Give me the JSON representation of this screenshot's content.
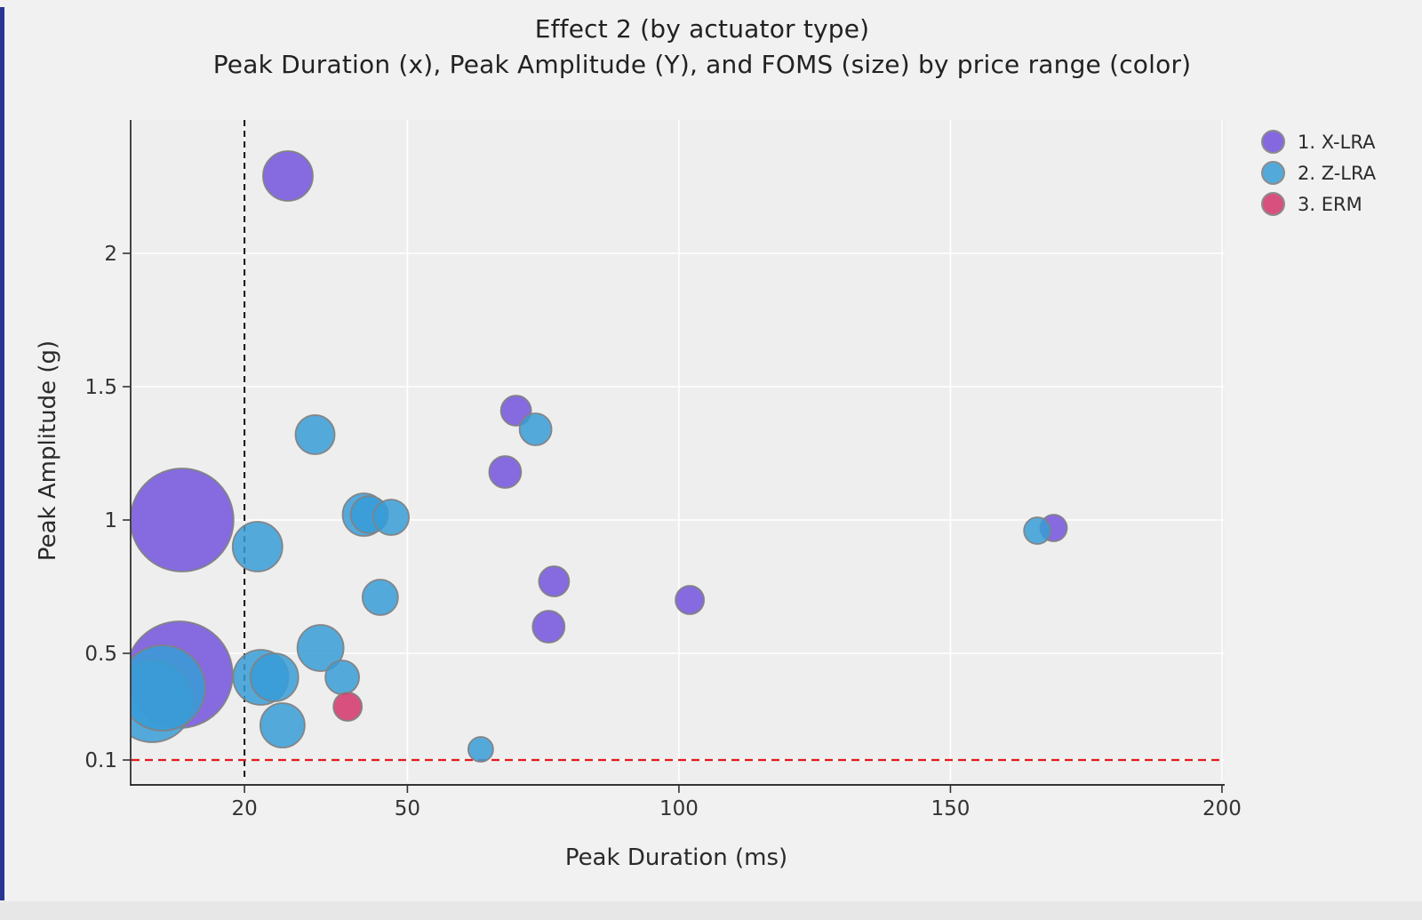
{
  "title": "Effect 2 (by actuator type)",
  "subtitle": "Peak Duration (x), Peak Amplitude (Y), and FOMS (size) by price range (color)",
  "chart_data": {
    "type": "scatter",
    "subtype": "bubble",
    "title": "Effect 2 (by actuator type)",
    "subtitle": "Peak Duration (x), Peak Amplitude (Y), and FOMS (size) by price range (color)",
    "xlabel": "Peak Duration (ms)",
    "ylabel": "Peak Amplitude (g)",
    "xlim": [
      -0.8,
      200.5
    ],
    "ylim": [
      0.02,
      2.5
    ],
    "x_ticks": [
      20,
      50,
      100,
      150,
      200
    ],
    "y_ticks": [
      0.1,
      0.5,
      1,
      1.5,
      2
    ],
    "grid": true,
    "gridline_color": "#ffffff",
    "plot_bg": "#eeeeef",
    "reference_lines": {
      "vline": {
        "x": 20,
        "color": "#111111",
        "dash": "black-dashed"
      },
      "hline": {
        "y": 0.1,
        "color": "#e41a1c",
        "dash": "red-dashed"
      }
    },
    "marker_opacity": 0.85,
    "marker_stroke": "#828282",
    "legend_position": "top-right",
    "legend": [
      {
        "label": "1. X-LRA",
        "color": "#8568e0"
      },
      {
        "label": "2. Z-LRA",
        "color": "#54a9db"
      },
      {
        "label": "3. ERM",
        "color": "#d8517e"
      }
    ],
    "series": [
      {
        "name": "1. X-LRA",
        "fill": "#7253dc",
        "points": [
          {
            "x": 28,
            "y": 2.29,
            "r": 28
          },
          {
            "x": 8.5,
            "y": 1.0,
            "r": 58
          },
          {
            "x": 70,
            "y": 1.41,
            "r": 17
          },
          {
            "x": 68,
            "y": 1.18,
            "r": 18
          },
          {
            "x": 8,
            "y": 0.42,
            "r": 60
          },
          {
            "x": 77,
            "y": 0.77,
            "r": 17
          },
          {
            "x": 76,
            "y": 0.6,
            "r": 18
          },
          {
            "x": 102,
            "y": 0.7,
            "r": 16
          },
          {
            "x": 169,
            "y": 0.97,
            "r": 15
          }
        ]
      },
      {
        "name": "2. Z-LRA",
        "fill": "#389cd7",
        "points": [
          {
            "x": 33,
            "y": 1.32,
            "r": 22
          },
          {
            "x": 73.6,
            "y": 1.34,
            "r": 18
          },
          {
            "x": 22.4,
            "y": 0.9,
            "r": 28
          },
          {
            "x": 42,
            "y": 1.02,
            "r": 24
          },
          {
            "x": 43,
            "y": 1.02,
            "r": 21
          },
          {
            "x": 47,
            "y": 1.01,
            "r": 20
          },
          {
            "x": 45,
            "y": 0.71,
            "r": 20
          },
          {
            "x": 34,
            "y": 0.52,
            "r": 26
          },
          {
            "x": 23,
            "y": 0.41,
            "r": 31
          },
          {
            "x": 25.5,
            "y": 0.41,
            "r": 27
          },
          {
            "x": 38,
            "y": 0.41,
            "r": 19
          },
          {
            "x": 27,
            "y": 0.23,
            "r": 25
          },
          {
            "x": 3,
            "y": 0.32,
            "r": 46
          },
          {
            "x": 4.9,
            "y": 0.37,
            "r": 48
          },
          {
            "x": 63.5,
            "y": 0.14,
            "r": 14
          },
          {
            "x": 166,
            "y": 0.96,
            "r": 15
          }
        ]
      },
      {
        "name": "3. ERM",
        "fill": "#d4356a",
        "points": [
          {
            "x": 39,
            "y": 0.3,
            "r": 16
          }
        ]
      }
    ]
  }
}
